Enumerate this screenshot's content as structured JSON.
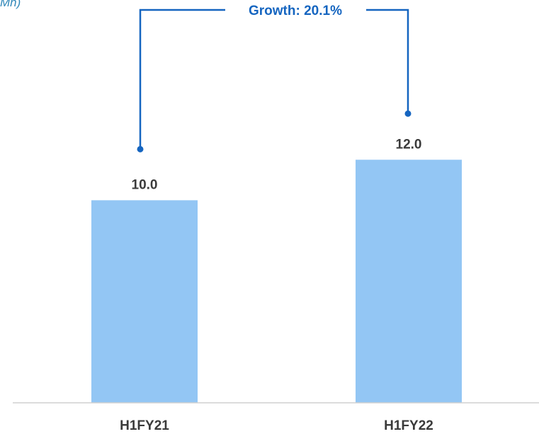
{
  "header": {
    "unit_fragment": "Mn)"
  },
  "chart_data": {
    "type": "bar",
    "categories": [
      "H1FY21",
      "H1FY22"
    ],
    "values": [
      10.0,
      12.0
    ],
    "value_labels": [
      "10.0",
      "12.0"
    ],
    "ylim": [
      0,
      15.3
    ],
    "grid": false,
    "bar_color": "#93C6F4",
    "annotation": {
      "text": "Growth: 20.1%",
      "color": "#1565C0"
    }
  }
}
